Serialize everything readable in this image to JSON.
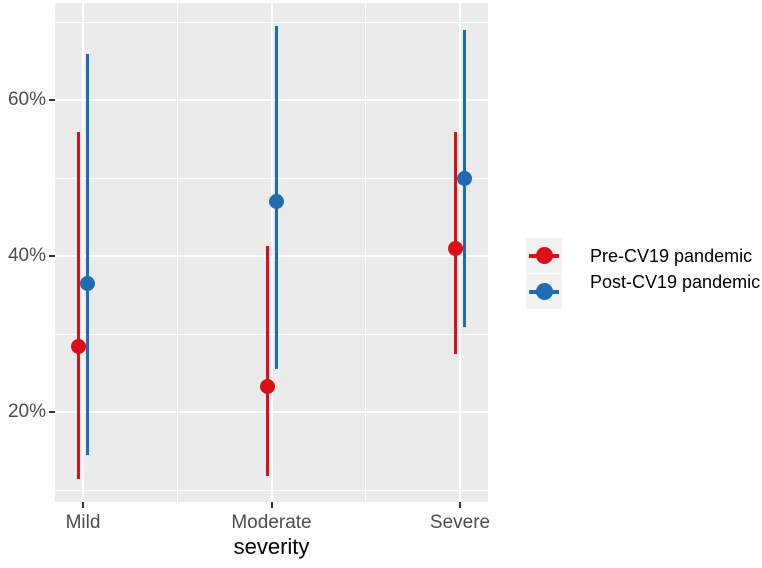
{
  "chart_data": {
    "type": "pointrange",
    "title": "",
    "xlabel": "severity",
    "ylabel": "",
    "categories": [
      "Mild",
      "Moderate",
      "Severe"
    ],
    "y_tick_labels": [
      "20%",
      "40%",
      "60%"
    ],
    "y_major_values": [
      20,
      40,
      60
    ],
    "y_minor_values": [
      10,
      30,
      50,
      70
    ],
    "ylim": [
      8.5,
      72.5
    ],
    "y_unit": "percent",
    "legend_position": "right",
    "grid": true,
    "series": [
      {
        "name": "Pre-CV19 pandemic",
        "color": "#DB0F1A",
        "points": [
          {
            "category": "Mild",
            "y": 28.5,
            "ymin": 11.5,
            "ymax": 56.0
          },
          {
            "category": "Moderate",
            "y": 23.3,
            "ymin": 11.8,
            "ymax": 41.3
          },
          {
            "category": "Severe",
            "y": 41.0,
            "ymin": 27.5,
            "ymax": 56.0
          }
        ]
      },
      {
        "name": "Post-CV19 pandemic",
        "color": "#1E6CB2",
        "points": [
          {
            "category": "Mild",
            "y": 36.5,
            "ymin": 14.5,
            "ymax": 66.0
          },
          {
            "category": "Moderate",
            "y": 47.0,
            "ymin": 25.5,
            "ymax": 69.5
          },
          {
            "category": "Severe",
            "y": 50.0,
            "ymin": 31.0,
            "ymax": 69.0
          }
        ]
      }
    ]
  },
  "legend": {
    "items": [
      {
        "label": "Pre-CV19 pandemic",
        "color": "#DB0F1A"
      },
      {
        "label": "Post-CV19 pandemic",
        "color": "#1E6CB2"
      }
    ]
  },
  "colors": {
    "panel_background": "#EBEBEB",
    "gridline": "#FFFFFF",
    "tick_mark": "#333333",
    "tick_label": "#4D4D4D",
    "axis_title": "#000000",
    "legend_key_background": "#F2F2F2",
    "pre_series": "#DB0F1A",
    "post_series": "#1E6CB2"
  }
}
